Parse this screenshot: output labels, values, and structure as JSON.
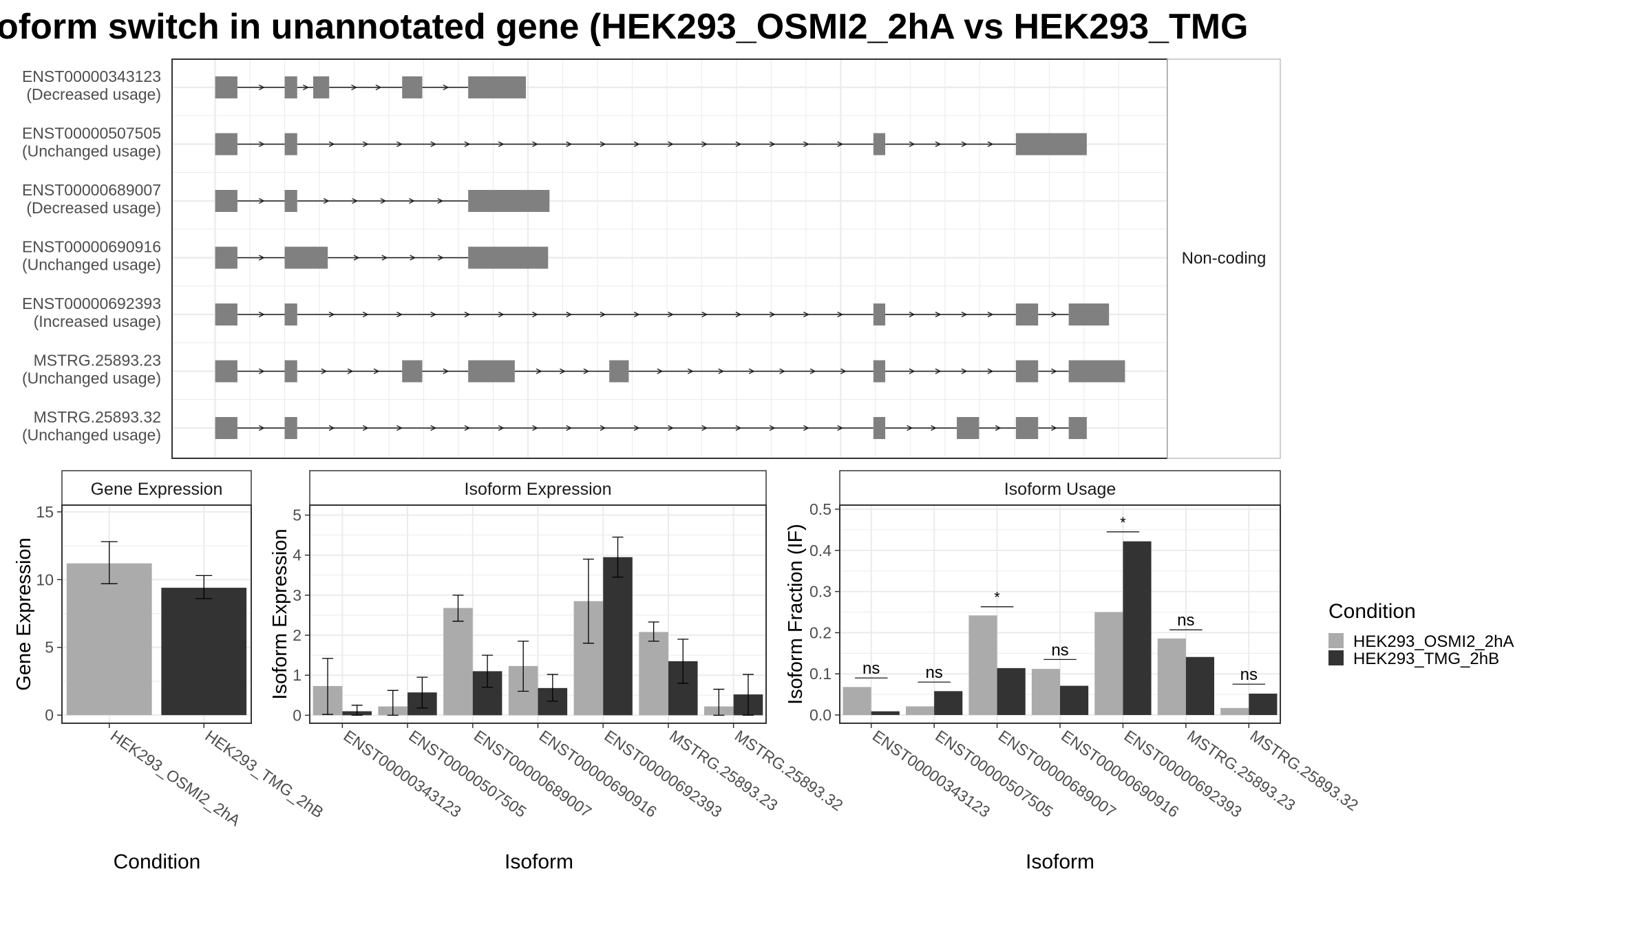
{
  "title": "oform switch in unannotated gene (HEK293_OSMI2_2hA vs HEK293_TMG",
  "colors": {
    "exon": "#808080",
    "osmi": "#ababab",
    "tmg": "#333333",
    "grid": "#ebebeb",
    "strip": "#ffffff",
    "border": "#333333",
    "text": "#4d4d4d"
  },
  "structure": {
    "facet_label": "Non-coding",
    "isoforms": [
      {
        "id": "ENST00000343123",
        "usage": "(Decreased usage)"
      },
      {
        "id": "ENST00000507505",
        "usage": "(Unchanged usage)"
      },
      {
        "id": "ENST00000689007",
        "usage": "(Decreased usage)"
      },
      {
        "id": "ENST00000690916",
        "usage": "(Unchanged usage)"
      },
      {
        "id": "ENST00000692393",
        "usage": "(Increased usage)"
      },
      {
        "id": "MSTRG.25893.23",
        "usage": "(Unchanged usage)"
      },
      {
        "id": "MSTRG.25893.32",
        "usage": "(Unchanged usage)"
      }
    ],
    "exons": [
      [
        [
          0,
          32
        ],
        [
          100,
          118
        ],
        [
          141,
          164
        ],
        [
          269,
          298
        ],
        [
          364,
          447
        ]
      ],
      [
        [
          0,
          32
        ],
        [
          100,
          118
        ],
        [
          947,
          964
        ],
        [
          1152,
          1254
        ]
      ],
      [
        [
          0,
          32
        ],
        [
          100,
          118
        ],
        [
          364,
          481
        ]
      ],
      [
        [
          0,
          32
        ],
        [
          100,
          162
        ],
        [
          364,
          479
        ]
      ],
      [
        [
          0,
          32
        ],
        [
          100,
          118
        ],
        [
          947,
          964
        ],
        [
          1152,
          1184
        ],
        [
          1228,
          1286
        ]
      ],
      [
        [
          0,
          32
        ],
        [
          100,
          118
        ],
        [
          269,
          298
        ],
        [
          364,
          431
        ],
        [
          567,
          595
        ],
        [
          947,
          964
        ],
        [
          1152,
          1184
        ],
        [
          1228,
          1309
        ]
      ],
      [
        [
          0,
          32
        ],
        [
          100,
          118
        ],
        [
          947,
          964
        ],
        [
          1067,
          1099
        ],
        [
          1152,
          1184
        ],
        [
          1228,
          1254
        ]
      ]
    ],
    "domain": [
      -62,
      1370
    ]
  },
  "legend": {
    "title": "Condition",
    "items": [
      "HEK293_OSMI2_2hA",
      "HEK293_TMG_2hB"
    ]
  },
  "chart_data": [
    {
      "type": "bar",
      "title": "Gene Expression",
      "xlabel": "Condition",
      "ylabel": "Gene Expression",
      "ylim": [
        -0.6,
        15.5
      ],
      "yticks": [
        0,
        5,
        10,
        15
      ],
      "categories": [
        "HEK293_OSMI2_2hA",
        "HEK293_TMG_2hB"
      ],
      "values": [
        11.2,
        9.4
      ],
      "errors": [
        [
          9.7,
          12.8
        ],
        [
          8.6,
          10.3
        ]
      ],
      "bar_colors": [
        "osmi",
        "tmg"
      ]
    },
    {
      "type": "bar",
      "title": "Isoform Expression",
      "xlabel": "Isoform",
      "ylabel": "Isoform Expression",
      "ylim": [
        -0.2,
        5.25
      ],
      "yticks": [
        0,
        1,
        2,
        3,
        4,
        5
      ],
      "categories": [
        "ENST00000343123",
        "ENST00000507505",
        "ENST00000689007",
        "ENST00000690916",
        "ENST00000692393",
        "MSTRG.25893.23",
        "MSTRG.25893.32"
      ],
      "series": [
        {
          "name": "HEK293_OSMI2_2hA",
          "values": [
            0.73,
            0.22,
            2.68,
            1.23,
            2.85,
            2.08,
            0.22
          ],
          "errors": [
            [
              0.02,
              1.42
            ],
            [
              0.0,
              0.62
            ],
            [
              2.35,
              3.0
            ],
            [
              0.6,
              1.85
            ],
            [
              1.8,
              3.9
            ],
            [
              1.85,
              2.33
            ],
            [
              0.0,
              0.65
            ]
          ]
        },
        {
          "name": "HEK293_TMG_2hB",
          "values": [
            0.1,
            0.57,
            1.1,
            0.68,
            3.95,
            1.35,
            0.52
          ],
          "errors": [
            [
              0.0,
              0.25
            ],
            [
              0.18,
              0.95
            ],
            [
              0.7,
              1.5
            ],
            [
              0.35,
              1.02
            ],
            [
              3.45,
              4.45
            ],
            [
              0.8,
              1.9
            ],
            [
              0.0,
              1.02
            ]
          ]
        }
      ]
    },
    {
      "type": "bar",
      "title": "Isoform Usage",
      "xlabel": "Isoform",
      "ylabel": "Isoform Fraction (IF)",
      "ylim": [
        -0.02,
        0.51
      ],
      "yticks": [
        0.0,
        0.1,
        0.2,
        0.3,
        0.4,
        0.5
      ],
      "categories": [
        "ENST00000343123",
        "ENST00000507505",
        "ENST00000689007",
        "ENST00000690916",
        "ENST00000692393",
        "MSTRG.25893.23",
        "MSTRG.25893.32"
      ],
      "series": [
        {
          "name": "HEK293_OSMI2_2hA",
          "values": [
            0.068,
            0.021,
            0.242,
            0.112,
            0.25,
            0.186,
            0.017
          ]
        },
        {
          "name": "HEK293_TMG_2hB",
          "values": [
            0.009,
            0.058,
            0.114,
            0.071,
            0.422,
            0.141,
            0.052
          ]
        }
      ],
      "significance": [
        "ns",
        "ns",
        "*",
        "ns",
        "*",
        "",
        "ns"
      ],
      "significance_y": [
        0.09,
        0.08,
        0.263,
        0.135,
        0.445,
        0.207,
        0.075
      ],
      "label_only": [
        "",
        "",
        "",
        "",
        "",
        "ns",
        ""
      ]
    }
  ]
}
